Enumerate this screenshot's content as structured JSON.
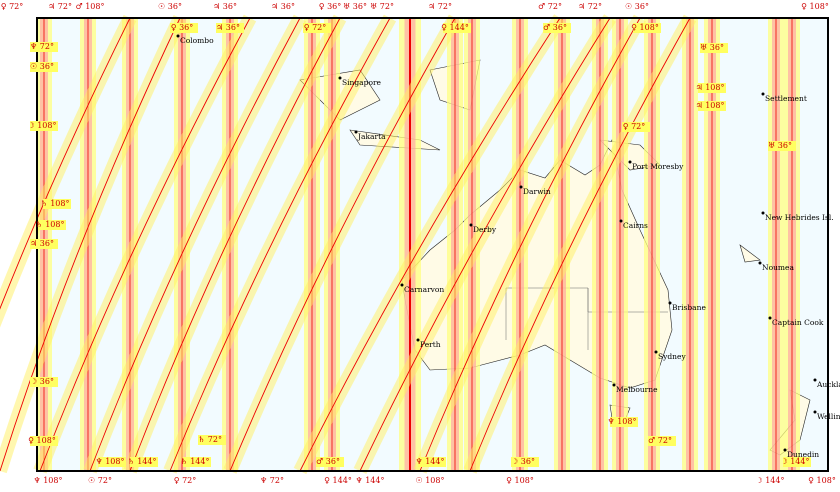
{
  "cities": [
    "Colombo",
    "Singapore",
    "Jakarta",
    "Darwin",
    "Derby",
    "Carnarvon",
    "Perth",
    "Port Moresby",
    "Cairns",
    "Brisbane",
    "Sydney",
    "Melbourne",
    "Settlement",
    "New Hebrides Isl.",
    "Noumea",
    "Captain Cook",
    "Auckland",
    "Wellington",
    "Dunedin"
  ],
  "line_labels": [
    "♀ 72°",
    "♃ 72°",
    "♂ 108°",
    "☉ 36°",
    "♃ 36°",
    "♃ 36°",
    "♀ 36°",
    "♅ 36°",
    "♅ 72°",
    "♃ 72°",
    "♂ 72°",
    "♃ 72°",
    "☉ 36°",
    "♀ 108°",
    "♀ 36°",
    "♃ 36°",
    "♀ 72°",
    "♀ 144°",
    "♂ 36°",
    "♀ 108°",
    "♅ 36°",
    "♃ 108°",
    "♃ 108°",
    "♀ 72°",
    "♅ 36°",
    "♆ 72°",
    "☉ 36°",
    "☽ 108°",
    "♄ 108°",
    "♄ 108°",
    "♃ 36°",
    "☽ 36°",
    "♀ 108°",
    "♆ 108°",
    "♄ 144°",
    "♄ 144°",
    "♄ 72°",
    "♂ 36°",
    "♆ 144°",
    "☽ 36°",
    "♆ 108°",
    "♂ 72°",
    "☽ 144°",
    "♆ 108°",
    "☉ 72°",
    "♀ 72°",
    "♆ 72°",
    "♀ 144°",
    "♆ 144°",
    "☉ 108°",
    "♀ 108°",
    "☽ 144°",
    "♀ 108°"
  ]
}
